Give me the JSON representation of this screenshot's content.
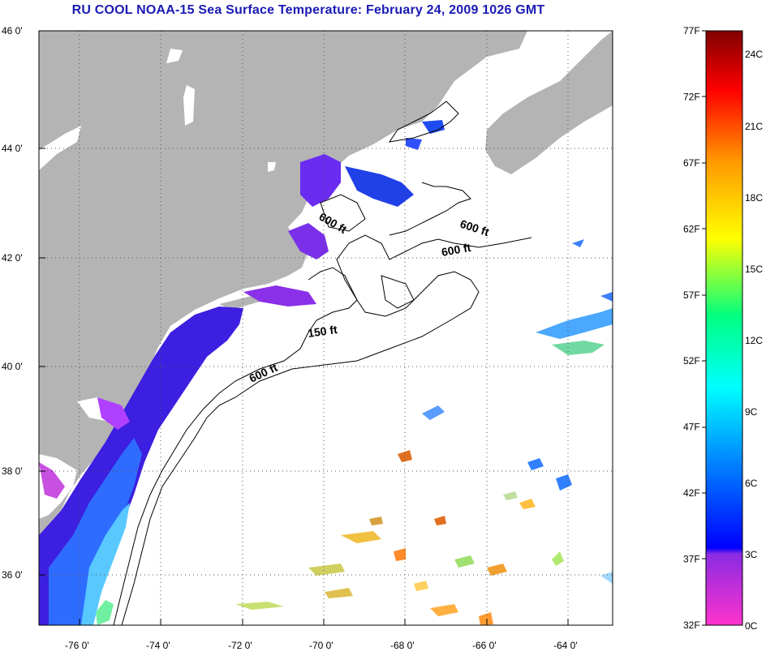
{
  "title": "RU COOL  NOAA-15  Sea Surface Temperature:  February 24, 2009 1026 GMT",
  "axes": {
    "lat_ticks": [
      "46 0'",
      "44 0'",
      "42 0'",
      "40 0'",
      "38 0'",
      "36 0'"
    ],
    "lon_ticks": [
      "-76 0'",
      "-74 0'",
      "-72 0'",
      "-70 0'",
      "-68 0'",
      "-66 0'",
      "-64 0'"
    ]
  },
  "contours": [
    {
      "label": "600 ft"
    },
    {
      "label": "600 ft"
    },
    {
      "label": "600 ft"
    },
    {
      "label": "150 ft"
    },
    {
      "label": "600 ft"
    }
  ],
  "colorbar": {
    "f_labels": [
      "77F",
      "72F",
      "67F",
      "62F",
      "57F",
      "52F",
      "47F",
      "42F",
      "37F",
      "32F"
    ],
    "c_labels": [
      "24C",
      "21C",
      "18C",
      "15C",
      "12C",
      "9C",
      "6C",
      "3C",
      "0C"
    ],
    "colors": [
      "#ff33cc",
      "#8a2be2",
      "#0000ff",
      "#0080ff",
      "#00ffff",
      "#00ff80",
      "#ffff00",
      "#ff9900",
      "#ff0000",
      "#800000"
    ]
  },
  "colors": {
    "land": "#b4b4b4",
    "ocean": "#ffffff",
    "title": "#1a1ab4",
    "grid": "#555555"
  }
}
